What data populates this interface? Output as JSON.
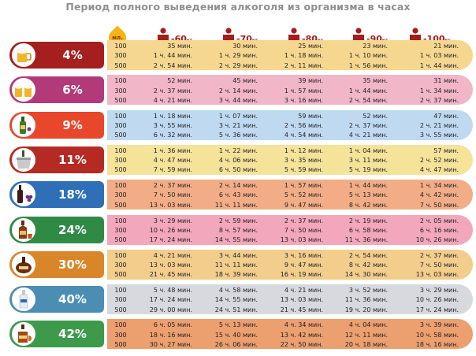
{
  "title": "Период полного выведения алкоголя из организма в часах",
  "header": {
    "ml_label": "мл.",
    "weights": [
      {
        "value": "-60",
        "unit": "кг"
      },
      {
        "value": "-70",
        "unit": "кг"
      },
      {
        "value": "-80",
        "unit": "кг"
      },
      {
        "value": "-90",
        "unit": "кг"
      },
      {
        "value": "-100",
        "unit": "кг"
      }
    ]
  },
  "volumes": [
    "100",
    "300",
    "500"
  ],
  "rows": [
    {
      "percent": "4%",
      "icon": "beer-mug-icon",
      "cap_color": "#a51f1f",
      "band_color": "#f6d78f",
      "cells": [
        [
          "35 мин.",
          "1 ч. 44 мин.",
          "2 ч. 54 мин."
        ],
        [
          "30 мин.",
          "1 ч. 29 мин.",
          "2 ч. 29 мин."
        ],
        [
          "25 мин.",
          "1 ч. 18 мин.",
          "2 ч. 11 мин."
        ],
        [
          "23 мин.",
          "1 ч. 10 мин.",
          "1 ч. 56 мин."
        ],
        [
          "21 мин.",
          "1 ч. 03 мин.",
          "1 ч. 44 мин."
        ]
      ]
    },
    {
      "percent": "6%",
      "icon": "beer-mugs-icon",
      "cap_color": "#b33a7a",
      "band_color": "#f1b6c8",
      "cells": [
        [
          "52 мин.",
          "2 ч. 37 мин.",
          "4 ч. 21 мин."
        ],
        [
          "45 мин.",
          "2 ч. 14 мин.",
          "3 ч. 44 мин."
        ],
        [
          "39 мин.",
          "1 ч. 57 мин.",
          "3 ч. 16 мин."
        ],
        [
          "35 мин.",
          "1 ч. 44 мин.",
          "2 ч. 54 мин."
        ],
        [
          "31 мин.",
          "1 ч. 34 мин.",
          "2 ч. 37 мин."
        ]
      ]
    },
    {
      "percent": "9%",
      "icon": "wine-bottle-icon",
      "cap_color": "#e8472b",
      "band_color": "#bfd9f1",
      "cells": [
        [
          "1 ч. 18 мин.",
          "3 ч. 55 мин.",
          "6 ч. 32 мин."
        ],
        [
          "1 ч. 07 мин.",
          "3 ч. 21 мин.",
          "5 ч. 36 мин."
        ],
        [
          "59 мин.",
          "2 ч. 56 мин.",
          "4 ч. 54 мин."
        ],
        [
          "52 мин.",
          "2 ч. 37 мин.",
          "4 ч. 21 мин."
        ],
        [
          "47 мин.",
          "2 ч. 21 мин.",
          "3 ч. 55 мин."
        ]
      ]
    },
    {
      "percent": "11%",
      "icon": "champagne-bucket-icon",
      "cap_color": "#b52a23",
      "band_color": "#f5e39a",
      "cells": [
        [
          "1 ч. 36 мин.",
          "4 ч. 47 мин.",
          "7 ч. 59 мин."
        ],
        [
          "1 ч. 22 мин.",
          "4 ч. 06 мин.",
          "6 ч. 50 мин."
        ],
        [
          "1 ч. 12 мин.",
          "3 ч. 35 мин.",
          "5 ч. 59 мин."
        ],
        [
          "1 ч. 04 мин.",
          "3 ч. 11 мин.",
          "5 ч. 19 мин."
        ],
        [
          "57 мин.",
          "2 ч. 52 мин.",
          "4 ч. 47 мин."
        ]
      ]
    },
    {
      "percent": "18%",
      "icon": "wine-grapes-icon",
      "cap_color": "#2e6fb8",
      "band_color": "#f2ad86",
      "cells": [
        [
          "2 ч. 37 мин.",
          "7 ч. 50 мин.",
          "13 ч. 03 мин."
        ],
        [
          "2 ч. 14 мин.",
          "6 ч. 43 мин.",
          "11 ч. 11 мин."
        ],
        [
          "1 ч. 57 мин.",
          "5 ч. 52 мин.",
          "9 ч. 47 мин."
        ],
        [
          "1 ч. 44 мин.",
          "5 ч. 13 мин.",
          "8 ч. 42 мин."
        ],
        [
          "1 ч. 34 мин.",
          "4 ч. 42 мин.",
          "7 ч. 50 мин."
        ]
      ]
    },
    {
      "percent": "24%",
      "icon": "liqueur-bottle-icon",
      "cap_color": "#2f8a46",
      "band_color": "#f3a7bd",
      "cells": [
        [
          "3 ч. 29 мин.",
          "10 ч. 26 мин.",
          "17 ч. 24 мин."
        ],
        [
          "2 ч. 59 мин.",
          "8 ч. 57 мин.",
          "14 ч. 55 мин."
        ],
        [
          "2 ч. 37 мин.",
          "7 ч. 50 мин.",
          "13 ч. 03 мин."
        ],
        [
          "2 ч. 19 мин.",
          "6 ч. 58 мин.",
          "11 ч. 36 мин."
        ],
        [
          "2 ч. 05 мин.",
          "6 ч. 16 мин.",
          "10 ч. 26 мин."
        ]
      ]
    },
    {
      "percent": "30%",
      "icon": "rum-bottle-icon",
      "cap_color": "#d9862a",
      "band_color": "#f2cd8c",
      "cells": [
        [
          "4 ч. 21 мин.",
          "13 ч. 03 мин.",
          "21 ч. 45 мин."
        ],
        [
          "3 ч. 44 мин.",
          "11 ч. 11 мин.",
          "18 ч. 39 мин."
        ],
        [
          "3 ч. 16 мин.",
          "9 ч. 47 мин.",
          "16 ч. 19 мин."
        ],
        [
          "2 ч. 54 мин.",
          "8 ч. 42 мин.",
          "14 ч. 30 мин."
        ],
        [
          "2 ч. 37 мин.",
          "7 ч. 50 мин.",
          "13 ч. 03 мин."
        ]
      ]
    },
    {
      "percent": "40%",
      "icon": "vodka-bottle-icon",
      "cap_color": "#4c8db3",
      "band_color": "#d7d9df",
      "cells": [
        [
          "5 ч. 48 мин.",
          "17 ч. 24 мин.",
          "29 ч. 00 мин."
        ],
        [
          "4 ч. 58 мин.",
          "14 ч. 55 мин.",
          "24 ч. 51 мин."
        ],
        [
          "4 ч. 21 мин.",
          "13 ч. 03 мин.",
          "21 ч. 45 мин."
        ],
        [
          "3 ч. 52 мин.",
          "11 ч. 36 мин.",
          "19 ч. 20 мин."
        ],
        [
          "3 ч. 29 мин.",
          "10 ч. 26 мин.",
          "17 ч. 24 мин."
        ]
      ]
    },
    {
      "percent": "42%",
      "icon": "cognac-bottle-icon",
      "cap_color": "#3c9a4a",
      "band_color": "#ec9f6f",
      "cells": [
        [
          "6 ч. 05 мин.",
          "18 ч. 16 мин.",
          "30 ч. 27 мин."
        ],
        [
          "5 ч. 13 мин.",
          "15 ч. 40 мин.",
          "26 ч. 06 мин."
        ],
        [
          "4 ч. 34 мин.",
          "13 ч. 42 мин.",
          "22 ч. 50 мин."
        ],
        [
          "4 ч. 04 мин.",
          "12 ч. 11 мин.",
          "20 ч. 18 мин."
        ],
        [
          "3 ч. 39 мин.",
          "10 ч. 58 мин.",
          "18 ч. 16 мин."
        ]
      ]
    }
  ]
}
